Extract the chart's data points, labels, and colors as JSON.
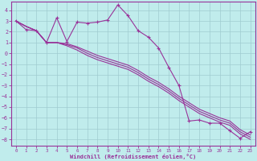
{
  "xlabel": "Windchill (Refroidissement éolien,°C)",
  "xlim": [
    -0.5,
    23.5
  ],
  "ylim": [
    -8.6,
    4.8
  ],
  "yticks": [
    4,
    3,
    2,
    1,
    0,
    -1,
    -2,
    -3,
    -4,
    -5,
    -6,
    -7,
    -8
  ],
  "xticks": [
    0,
    1,
    2,
    3,
    4,
    5,
    6,
    7,
    8,
    9,
    10,
    11,
    12,
    13,
    14,
    15,
    16,
    17,
    18,
    19,
    20,
    21,
    22,
    23
  ],
  "bg_color": "#c0ecec",
  "grid_color": "#a0ccd0",
  "line_color": "#993399",
  "line1": [
    3.0,
    2.2,
    2.1,
    1.0,
    3.3,
    1.1,
    2.9,
    2.8,
    2.9,
    3.1,
    4.5,
    3.5,
    2.1,
    1.5,
    0.5,
    -1.3,
    -3.0,
    -6.3,
    -6.2,
    -6.5,
    -6.5,
    -7.2,
    -7.9,
    -7.3
  ],
  "line2": [
    3.0,
    2.5,
    2.1,
    1.0,
    1.0,
    0.7,
    0.3,
    -0.2,
    -0.6,
    -0.9,
    -1.2,
    -1.5,
    -2.0,
    -2.6,
    -3.1,
    -3.7,
    -4.4,
    -5.0,
    -5.6,
    -6.0,
    -6.4,
    -6.7,
    -7.5,
    -8.0
  ],
  "line3": [
    3.0,
    2.5,
    2.1,
    1.0,
    1.0,
    0.8,
    0.5,
    0.0,
    -0.4,
    -0.7,
    -1.0,
    -1.3,
    -1.8,
    -2.4,
    -2.9,
    -3.5,
    -4.2,
    -4.8,
    -5.4,
    -5.8,
    -6.2,
    -6.5,
    -7.3,
    -7.8
  ],
  "line4": [
    3.0,
    2.5,
    2.1,
    1.0,
    1.0,
    0.9,
    0.6,
    0.2,
    -0.2,
    -0.5,
    -0.8,
    -1.1,
    -1.6,
    -2.2,
    -2.7,
    -3.3,
    -4.0,
    -4.6,
    -5.2,
    -5.6,
    -6.0,
    -6.3,
    -7.1,
    -7.6
  ]
}
